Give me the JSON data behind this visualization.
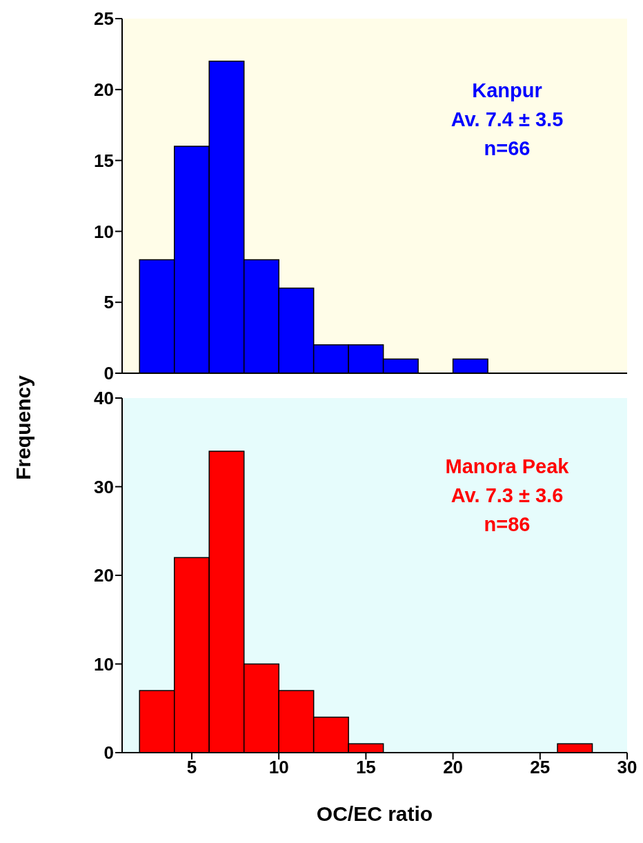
{
  "chart_data": [
    {
      "type": "histogram",
      "ylabel": "Frequency",
      "annotations": [
        "Kanpur",
        "Av. 7.4 ± 3.5",
        "n=66"
      ],
      "bins": [
        2,
        4,
        6,
        8,
        10,
        12,
        14,
        16,
        18,
        20,
        22
      ],
      "values": [
        8,
        16,
        22,
        8,
        6,
        2,
        2,
        1,
        0,
        1
      ],
      "color": "#0000ff",
      "xlim": [
        1,
        30
      ],
      "xticks": [
        5,
        10,
        15,
        20,
        25,
        30
      ],
      "ylim": [
        0,
        25
      ],
      "yticks": [
        0,
        5,
        10,
        15,
        20,
        25
      ],
      "tick_labels": "y",
      "grid": false,
      "legend": false
    },
    {
      "type": "histogram",
      "xlabel": "OC/EC ratio",
      "annotations": [
        "Manora Peak",
        "Av. 7.3 ± 3.6",
        "n=86"
      ],
      "bins": [
        2,
        4,
        6,
        8,
        10,
        12,
        14,
        16,
        18,
        20,
        22,
        24,
        26,
        28
      ],
      "values": [
        7,
        22,
        34,
        10,
        7,
        4,
        1,
        0,
        0,
        0,
        0,
        0,
        1
      ],
      "color": "#ff0000",
      "xlim": [
        1,
        30
      ],
      "xticks": [
        5,
        10,
        15,
        20,
        25,
        30
      ],
      "ylim": [
        0,
        40
      ],
      "yticks": [
        0,
        10,
        20,
        30,
        40
      ],
      "grid": false,
      "legend": false
    }
  ]
}
